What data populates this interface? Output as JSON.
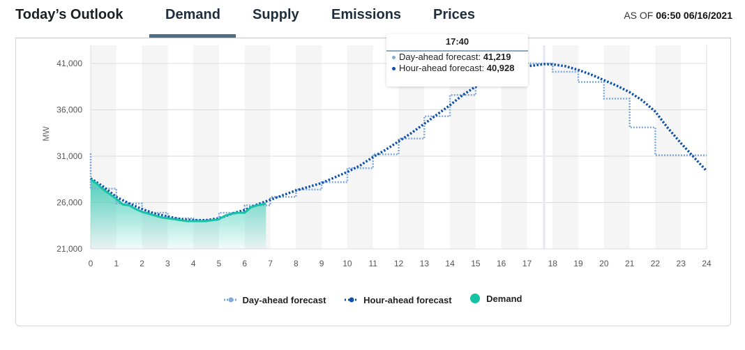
{
  "header": {
    "title": "Today’s Outlook",
    "tabs": [
      {
        "label": "Demand",
        "active": true
      },
      {
        "label": "Supply",
        "active": false
      },
      {
        "label": "Emissions",
        "active": false
      },
      {
        "label": "Prices",
        "active": false
      }
    ],
    "as_of_label": "AS OF",
    "as_of_value": "06:50 06/16/2021"
  },
  "tooltip": {
    "time": "17:40",
    "rows": [
      {
        "label": "Day-ahead forecast: ",
        "value": "41,219",
        "color": "#7fa9d8"
      },
      {
        "label": "Hour-ahead forecast: ",
        "value": "40,928",
        "color": "#0d4fa8"
      }
    ]
  },
  "colors": {
    "day_ahead": "#7fa9d8",
    "hour_ahead": "#0d4fa8",
    "demand": "#16c2a6",
    "tab_underline": "#4d6e87"
  },
  "chart_data": {
    "type": "line",
    "title": "",
    "xlabel": "",
    "ylabel": "MW",
    "xlim": [
      0,
      24
    ],
    "ylim": [
      21000,
      42500
    ],
    "x_ticks": [
      0,
      1,
      2,
      3,
      4,
      5,
      6,
      7,
      8,
      9,
      10,
      11,
      12,
      13,
      14,
      15,
      16,
      17,
      18,
      19,
      20,
      21,
      22,
      23,
      24
    ],
    "y_ticks": [
      21000,
      26000,
      31000,
      36000,
      41000
    ],
    "y_tick_labels": [
      "21,000",
      "26,000",
      "31,000",
      "36,000",
      "41,000"
    ],
    "grid": true,
    "legend_position": "bottom",
    "hover_x": 17.67,
    "series": [
      {
        "name": "Day-ahead forecast",
        "style": "step-dotted",
        "x": [
          0,
          1,
          2,
          3,
          4,
          5,
          6,
          7,
          8,
          9,
          10,
          11,
          12,
          13,
          14,
          15,
          16,
          17,
          18,
          19,
          20,
          21,
          22,
          23,
          24
        ],
        "values": [
          31300,
          27500,
          25900,
          24900,
          24300,
          24100,
          24900,
          25700,
          26600,
          27400,
          28200,
          29700,
          31200,
          32900,
          35300,
          37600,
          39100,
          41219,
          41000,
          40100,
          39000,
          37200,
          34100,
          31100,
          31100
        ]
      },
      {
        "name": "Hour-ahead forecast",
        "style": "dotted",
        "x": [
          0,
          0.5,
          1,
          1.5,
          2,
          2.5,
          3,
          3.5,
          4,
          4.5,
          5,
          5.5,
          6,
          6.5,
          7,
          7.5,
          8,
          8.5,
          9,
          9.5,
          10,
          10.5,
          11,
          11.5,
          12,
          12.5,
          13,
          13.5,
          14,
          14.5,
          15,
          15.5,
          16,
          16.5,
          17,
          17.33,
          17.67,
          18,
          18.5,
          19,
          19.5,
          20,
          20.5,
          21,
          21.5,
          22,
          22.5,
          23,
          23.5,
          24
        ],
        "values": [
          28600,
          27700,
          26600,
          25900,
          25300,
          24800,
          24500,
          24200,
          24100,
          24100,
          24300,
          24800,
          25200,
          25800,
          26300,
          26800,
          27300,
          27700,
          28100,
          28700,
          29300,
          30000,
          30900,
          31700,
          32600,
          33500,
          34500,
          35500,
          36500,
          37600,
          38500,
          39300,
          40000,
          40500,
          40700,
          40800,
          40928,
          40900,
          40700,
          40300,
          39800,
          39200,
          38600,
          37900,
          37000,
          35800,
          34000,
          32400,
          30900,
          29400
        ]
      },
      {
        "name": "Demand",
        "style": "area",
        "x": [
          0,
          0.25,
          0.5,
          0.75,
          1,
          1.25,
          1.5,
          1.75,
          2,
          2.25,
          2.5,
          2.75,
          3,
          3.25,
          3.5,
          3.75,
          4,
          4.25,
          4.5,
          4.75,
          5,
          5.25,
          5.5,
          5.75,
          6,
          6.25,
          6.5,
          6.83
        ],
        "values": [
          28500,
          28000,
          27400,
          26900,
          26400,
          25800,
          25700,
          25300,
          25000,
          24800,
          24600,
          24400,
          24300,
          24200,
          24100,
          24000,
          24000,
          24000,
          24000,
          24100,
          24200,
          24600,
          24800,
          24900,
          24900,
          25500,
          25700,
          25900
        ]
      }
    ]
  }
}
